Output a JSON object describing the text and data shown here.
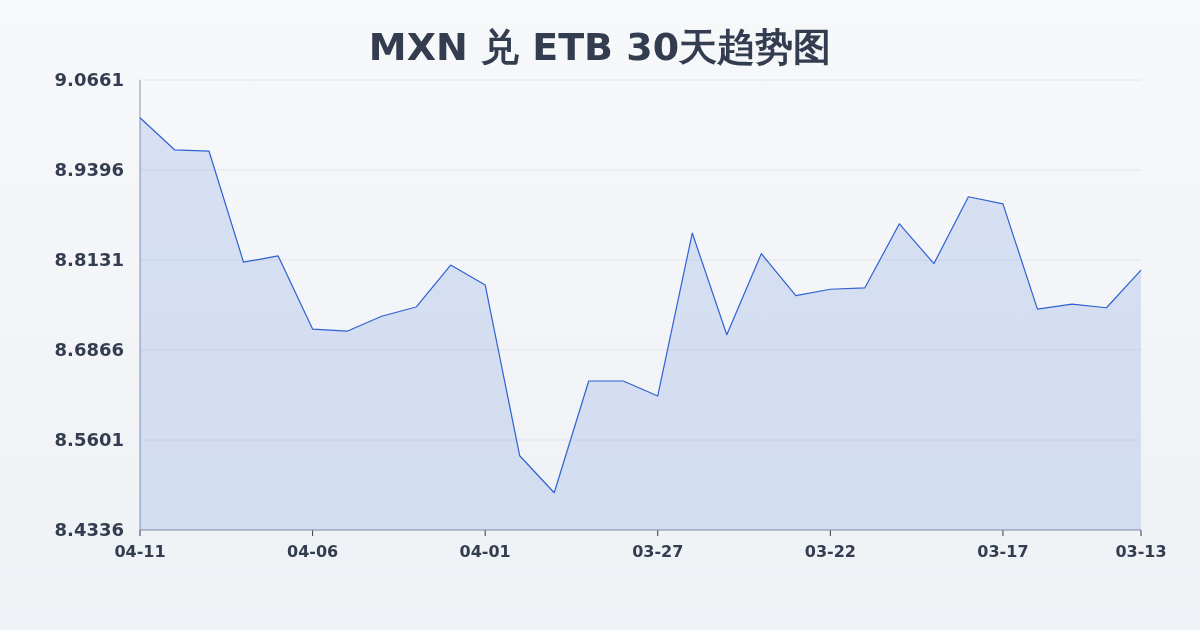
{
  "chart_data": {
    "type": "area",
    "title": "MXN 兑 ETB 30天趋势图",
    "categories": [
      "04-11",
      null,
      null,
      null,
      null,
      "04-06",
      null,
      null,
      null,
      null,
      "04-01",
      null,
      null,
      null,
      null,
      "03-27",
      null,
      null,
      null,
      null,
      "03-22",
      null,
      null,
      null,
      null,
      "03-17",
      null,
      null,
      null,
      "03-13"
    ],
    "series": [
      {
        "color": "#2f62d0",
        "values": [
          9.013,
          8.968,
          8.966,
          8.81,
          8.819,
          8.716,
          8.713,
          8.734,
          8.747,
          8.806,
          8.778,
          8.538,
          8.486,
          8.643,
          8.643,
          8.622,
          8.851,
          8.708,
          8.822,
          8.763,
          8.772,
          8.774,
          8.864,
          8.808,
          8.902,
          8.892,
          8.744,
          8.751,
          8.746,
          8.799
        ]
      }
    ],
    "ylim": [
      8.4336,
      9.0661
    ],
    "yticks": [
      8.4336,
      8.5601,
      8.6866,
      8.8131,
      8.9396,
      9.0661
    ],
    "grid": "y"
  }
}
